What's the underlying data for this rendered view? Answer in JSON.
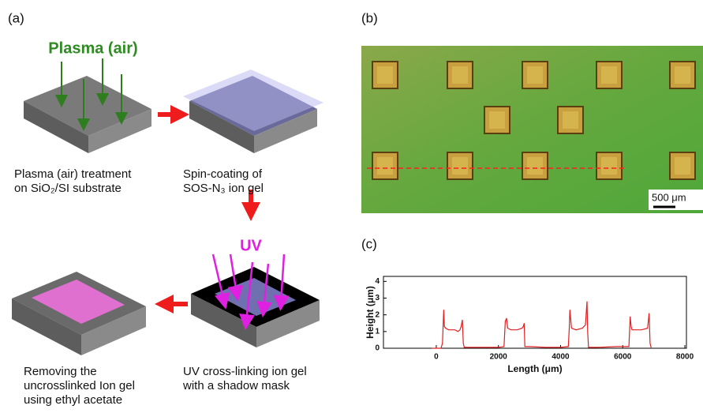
{
  "panels": {
    "a": {
      "label": "(a)",
      "plasma_label": "Plasma (air)",
      "uv_label": "UV",
      "captions": [
        [
          "Plasma (air) treatment",
          "on SiO₂/SI substrate"
        ],
        [
          "Spin-coating of",
          "SOS-N₃ ion gel"
        ],
        [
          "UV cross-linking ion gel",
          "with a shadow mask"
        ],
        [
          "Removing the",
          "uncrosslinked Ion gel",
          "using ethyl acetate"
        ]
      ]
    },
    "b": {
      "label": "(b)",
      "scale_bar": "500 μm"
    },
    "c": {
      "label": "(c)"
    }
  },
  "chart_data": {
    "type": "line",
    "x_label": "Length (μm)",
    "y_label": "Height (μm)",
    "color": "#e02020",
    "x": [
      -150,
      150,
      200,
      240,
      260,
      300,
      400,
      500,
      600,
      700,
      760,
      800,
      840,
      870,
      900,
      1000,
      1500,
      2000,
      2180,
      2220,
      2260,
      2300,
      2400,
      2600,
      2760,
      2800,
      2830,
      2850,
      3000,
      3500,
      4000,
      4250,
      4280,
      4300,
      4350,
      4500,
      4700,
      4800,
      4850,
      4870,
      4900,
      5200,
      5800,
      6200,
      6240,
      6270,
      6300,
      6400,
      6600,
      6800,
      6850,
      6880,
      6920
    ],
    "values": [
      0,
      0,
      0.3,
      2.3,
      1.3,
      1.2,
      1.1,
      1.1,
      1.1,
      1.0,
      1.1,
      1.3,
      1.7,
      0.3,
      0.05,
      0.05,
      0.05,
      0.05,
      0.1,
      1.6,
      1.8,
      1.2,
      1.1,
      1.1,
      1.2,
      1.3,
      1.5,
      0.1,
      0.1,
      0.05,
      0.05,
      0.1,
      1.2,
      2.3,
      1.2,
      1.1,
      1.2,
      1.4,
      2.8,
      1.0,
      0.05,
      0.05,
      0.1,
      0.1,
      1.9,
      1.3,
      1.1,
      1.1,
      1.1,
      1.2,
      2.1,
      0.3,
      0
    ],
    "xlim": [
      -1700,
      8050
    ],
    "ylim": [
      0,
      4.3
    ],
    "xticks": [
      0,
      2000,
      4000,
      6000,
      8000
    ],
    "yticks": [
      0,
      1,
      2,
      3,
      4
    ]
  }
}
